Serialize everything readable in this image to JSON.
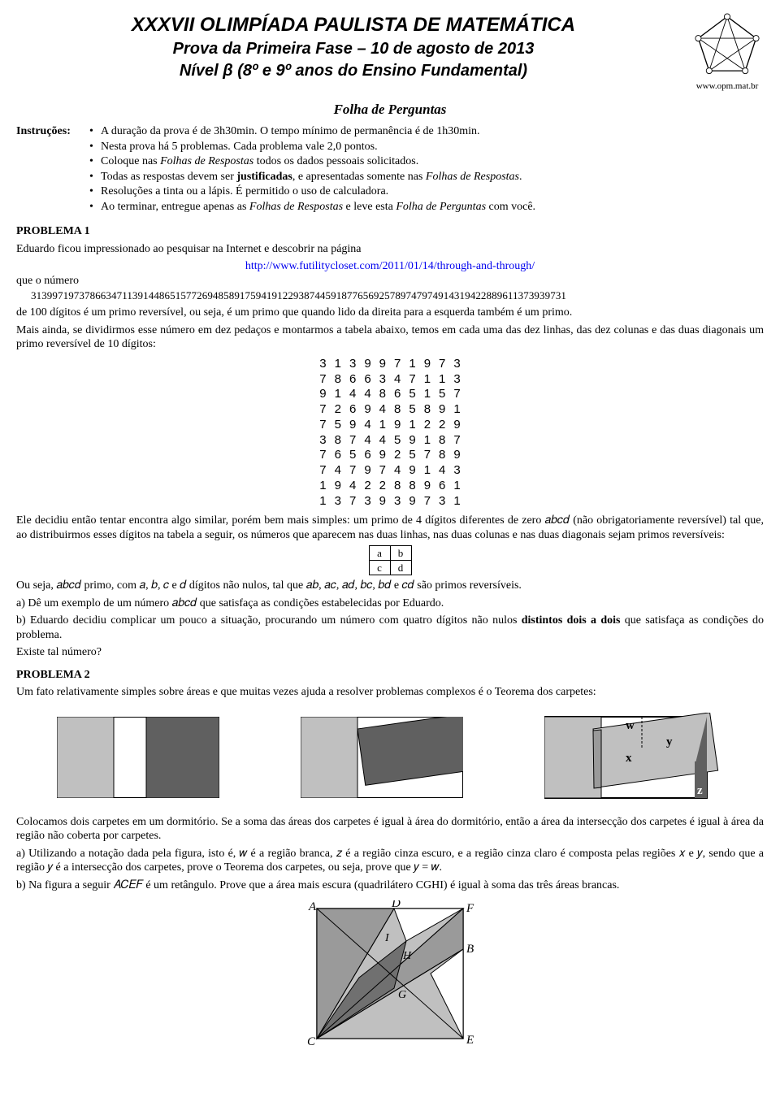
{
  "header": {
    "title1": "XXXVII OLIMPÍADA PAULISTA DE MATEMÁTICA",
    "title2": "Prova da Primeira Fase – 10 de agosto de 2013",
    "title3": "Nível β (8º e 9º anos do Ensino Fundamental)",
    "logo_url": "www.opm.mat.br"
  },
  "folha": "Folha de Perguntas",
  "instrucoes": {
    "label": "Instruções:",
    "items": [
      "A duração da prova é de 3h30min. O tempo mínimo de permanência é de 1h30min.",
      "Nesta prova há 5 problemas. Cada problema vale 2,0 pontos.",
      "Coloque nas Folhas de Respostas todos os dados pessoais solicitados.",
      "Todas as respostas devem ser justificadas, e apresentadas somente nas Folhas de Respostas.",
      "Resoluções a tinta ou a lápis. É permitido o uso de calculadora.",
      "Ao terminar, entregue apenas as Folhas de Respostas e leve esta Folha de Perguntas com você."
    ]
  },
  "problema1": {
    "title": "PROBLEMA 1",
    "p1": "Eduardo ficou impressionado ao pesquisar na Internet e descobrir na página",
    "link": "http://www.futilitycloset.com/2011/01/14/through-and-through/",
    "p2": "que o número",
    "big_number": "3139971973786634711391448651577269485891759419122938744591877656925789747974914319422889611373939731",
    "p3": "de 100 dígitos é um primo reversível, ou seja, é um primo que quando lido da direita para a esquerda também é um primo.",
    "p4": "Mais ainda, se dividirmos esse número em dez pedaços e montarmos a tabela abaixo, temos em cada uma das dez linhas, das dez colunas e das duas diagonais um primo reversível de 10 dígitos:",
    "grid": [
      [
        "3",
        "1",
        "3",
        "9",
        "9",
        "7",
        "1",
        "9",
        "7",
        "3"
      ],
      [
        "7",
        "8",
        "6",
        "6",
        "3",
        "4",
        "7",
        "1",
        "1",
        "3"
      ],
      [
        "9",
        "1",
        "4",
        "4",
        "8",
        "6",
        "5",
        "1",
        "5",
        "7"
      ],
      [
        "7",
        "2",
        "6",
        "9",
        "4",
        "8",
        "5",
        "8",
        "9",
        "1"
      ],
      [
        "7",
        "5",
        "9",
        "4",
        "1",
        "9",
        "1",
        "2",
        "2",
        "9"
      ],
      [
        "3",
        "8",
        "7",
        "4",
        "4",
        "5",
        "9",
        "1",
        "8",
        "7"
      ],
      [
        "7",
        "6",
        "5",
        "6",
        "9",
        "2",
        "5",
        "7",
        "8",
        "9"
      ],
      [
        "7",
        "4",
        "7",
        "9",
        "7",
        "4",
        "9",
        "1",
        "4",
        "3"
      ],
      [
        "1",
        "9",
        "4",
        "2",
        "2",
        "8",
        "8",
        "9",
        "6",
        "1"
      ],
      [
        "1",
        "3",
        "7",
        "3",
        "9",
        "3",
        "9",
        "7",
        "3",
        "1"
      ]
    ],
    "p5": "Ele decidiu então tentar encontra algo similar, porém bem mais simples: um primo de 4 dígitos diferentes de zero 𝑎𝑏𝑐𝑑 (não obrigatoriamente reversível) tal que, ao distribuirmos esses dígitos na tabela a seguir, os números que aparecem nas duas linhas, nas duas colunas e nas duas diagonais sejam primos reversíveis:",
    "ab_cells": [
      [
        "a",
        "b"
      ],
      [
        "c",
        "d"
      ]
    ],
    "p6": "Ou seja, 𝑎𝑏𝑐𝑑 primo, com 𝑎, 𝑏, 𝑐 e 𝑑 dígitos não nulos, tal que 𝑎𝑏, 𝑎𝑐, 𝑎𝑑, 𝑏𝑐, 𝑏𝑑 e 𝑐𝑑 são primos reversíveis.",
    "p7a": "a) Dê um exemplo de um número 𝑎𝑏𝑐𝑑 que satisfaça as condições estabelecidas por Eduardo.",
    "p7b": "b) Eduardo decidiu complicar um pouco a situação, procurando um número com quatro dígitos não nulos distintos dois a dois que satisfaça as condições do problema.",
    "p7c": "Existe tal número?"
  },
  "problema2": {
    "title": "PROBLEMA 2",
    "p1": "Um fato relativamente simples sobre áreas e que muitas vezes ajuda a resolver problemas complexos é o Teorema dos carpetes:",
    "labels": {
      "w": "w",
      "x": "x",
      "y": "y",
      "z": "z"
    },
    "p2": "Colocamos dois carpetes em um dormitório. Se a soma das áreas dos carpetes é igual à área do dormitório, então a área da intersecção dos carpetes é igual à área da região não coberta por carpetes.",
    "p3": "a) Utilizando a notação dada pela figura, isto é, 𝑤 é a região branca, 𝑧 é a região cinza escuro, e a região cinza claro é composta pelas regiões 𝑥 e 𝑦, sendo que a região 𝑦 é a intersecção dos carpetes, prove o Teorema dos carpetes, ou seja, prove que 𝑦 = 𝑤.",
    "p4": "b) Na figura a seguir 𝐴𝐶𝐸𝐹 é um retângulo. Prove que a área mais escura (quadrilátero CGHI) é igual à soma das três áreas brancas.",
    "rect_labels": {
      "A": "A",
      "C": "C",
      "E": "E",
      "F": "F",
      "D": "D",
      "B": "B",
      "I": "I",
      "H": "H",
      "G": "G"
    }
  },
  "colors": {
    "light_gray": "#c0c0c0",
    "dark_gray": "#606060",
    "mid_gray": "#9a9a9a",
    "darker_gray": "#707070"
  }
}
